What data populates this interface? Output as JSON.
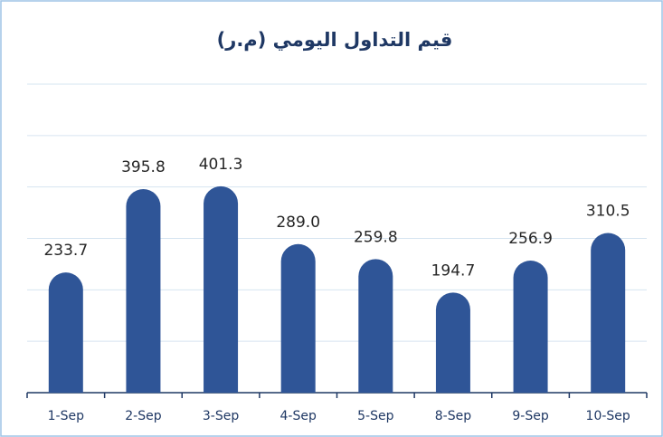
{
  "chart_data": {
    "type": "bar",
    "title": "قيم التداول اليومي (م.ر)",
    "categories": [
      "1-Sep",
      "2-Sep",
      "3-Sep",
      "4-Sep",
      "5-Sep",
      "8-Sep",
      "9-Sep",
      "10-Sep"
    ],
    "values": [
      233.7,
      395.8,
      401.3,
      289.0,
      259.8,
      194.7,
      256.9,
      310.5
    ],
    "value_labels": [
      "233.7",
      "395.8",
      "401.3",
      "289.0",
      "259.8",
      "194.7",
      "256.9",
      "310.5"
    ],
    "color": "#2f5597",
    "ylim": [
      0,
      600
    ],
    "yticks": [
      0,
      100,
      200,
      300,
      400,
      500,
      600
    ],
    "grid": true
  }
}
